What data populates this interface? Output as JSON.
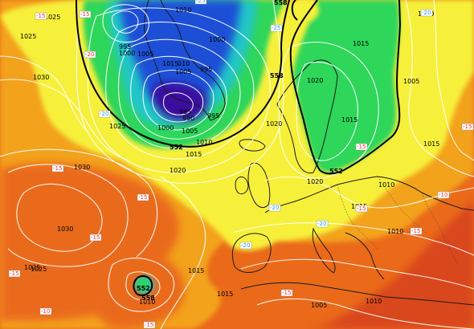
{
  "map": {
    "kind": "500 hPa geopotential and surface pressure analysis",
    "colors": {
      "deep_low": "#3a0f9e",
      "low": "#1f4fd6",
      "cool": "#22c6c8",
      "green": "#2fd65a",
      "yellow": "#f6f03a",
      "warm": "#f3a21a",
      "hot": "#ea6a1a",
      "very_hot": "#d9461a",
      "isobar": "#ffffff",
      "coast": "#1a1a1a",
      "geopotential_line": "#000000"
    }
  },
  "pressure_labels": [
    {
      "name": "p-1010-a",
      "text": "1010"
    },
    {
      "name": "p-995-a",
      "text": "995"
    },
    {
      "name": "p-1000-a",
      "text": "1000"
    },
    {
      "name": "p-1005-a",
      "text": "1005"
    },
    {
      "name": "p-1000-b",
      "text": "1000"
    },
    {
      "name": "p-1015-a",
      "text": "1015"
    },
    {
      "name": "p-010",
      "text": "010"
    },
    {
      "name": "p-1005-b",
      "text": "1005"
    },
    {
      "name": "p-995-b",
      "text": "995"
    },
    {
      "name": "p-985",
      "text": "985"
    },
    {
      "name": "p-990",
      "text": "990"
    },
    {
      "name": "p-995-c",
      "text": "995"
    },
    {
      "name": "p-1000-c",
      "text": "1000"
    },
    {
      "name": "p-1005-c",
      "text": "1005"
    },
    {
      "name": "p-1010-b",
      "text": "1010"
    },
    {
      "name": "p-1015-b",
      "text": "1015"
    },
    {
      "name": "p-1020-a",
      "text": "1020"
    },
    {
      "name": "p-1025-a",
      "text": "1025"
    },
    {
      "name": "p-1030-a",
      "text": "1030"
    },
    {
      "name": "p-1025-b",
      "text": "1025"
    },
    {
      "name": "p-1030-b",
      "text": "1030"
    },
    {
      "name": "p-1030-c",
      "text": "1030"
    },
    {
      "name": "p-1025-c",
      "text": "1025"
    },
    {
      "name": "p-1020-b",
      "text": "1020"
    },
    {
      "name": "p-1020-c",
      "text": "1020"
    },
    {
      "name": "p-1015-c",
      "text": "1015"
    },
    {
      "name": "p-1015-d",
      "text": "1015"
    },
    {
      "name": "p-1005-d",
      "text": "1005"
    },
    {
      "name": "p-1015-e",
      "text": "1015"
    },
    {
      "name": "p-1010-c",
      "text": "1010"
    },
    {
      "name": "p-1020-d",
      "text": "1020"
    },
    {
      "name": "p-1015-f",
      "text": "1015"
    },
    {
      "name": "p-1010-d",
      "text": "1010"
    },
    {
      "name": "p-1015-g",
      "text": "1015"
    },
    {
      "name": "p-1015-h",
      "text": "1015"
    },
    {
      "name": "p-1005-e",
      "text": "1005"
    },
    {
      "name": "p-1010-e",
      "text": "1010"
    },
    {
      "name": "p-1010-f",
      "text": "1010"
    },
    {
      "name": "p-1010-g",
      "text": "1010"
    },
    {
      "name": "p-1025-d",
      "text": "1025"
    },
    {
      "name": "p-1025-e",
      "text": "1025"
    }
  ],
  "geopotential_labels": [
    {
      "name": "g-558-top",
      "text": "558"
    },
    {
      "name": "g-558-mid",
      "text": "558"
    },
    {
      "name": "g-552-a",
      "text": "552"
    },
    {
      "name": "g-552-b",
      "text": "552"
    },
    {
      "name": "g-552-c",
      "text": "552"
    },
    {
      "name": "g-558-low",
      "text": "558"
    }
  ],
  "temperature_labels": [
    {
      "name": "t-15-a",
      "text": "-15",
      "color": "#ff2a2a"
    },
    {
      "name": "t-15-b",
      "text": "-15",
      "color": "#ff2a2a"
    },
    {
      "name": "t-20-a",
      "text": "-20",
      "color": "#ff2a2a"
    },
    {
      "name": "t-25-a",
      "text": "-25",
      "color": "#2aa0ff"
    },
    {
      "name": "t-25-b",
      "text": "-25",
      "color": "#2aa0ff"
    },
    {
      "name": "t-20-b",
      "text": "-20",
      "color": "#2aa0ff"
    },
    {
      "name": "t-15-c",
      "text": "-15",
      "color": "#ff2a2a"
    },
    {
      "name": "t-15-d",
      "text": "-15",
      "color": "#ff2a2a"
    },
    {
      "name": "t-15-e",
      "text": "-15",
      "color": "#ff2a2a"
    },
    {
      "name": "t-15-f",
      "text": "-15",
      "color": "#ff2a2a"
    },
    {
      "name": "t-20-c",
      "text": "-20",
      "color": "#2aa0ff"
    },
    {
      "name": "t-20-d",
      "text": "-20",
      "color": "#2aa0ff"
    },
    {
      "name": "t-20-e",
      "text": "-20",
      "color": "#2aa0ff"
    },
    {
      "name": "t-15-g",
      "text": "-15",
      "color": "#ff2a2a"
    },
    {
      "name": "t-15-h",
      "text": "-15",
      "color": "#ff2a2a"
    },
    {
      "name": "t-15-i",
      "text": "-15",
      "color": "#ff2a2a"
    },
    {
      "name": "t-15-j",
      "text": "-15",
      "color": "#ff2a2a"
    },
    {
      "name": "t-10-a",
      "text": "-10",
      "color": "#ff2a2a"
    },
    {
      "name": "t-15-k",
      "text": "-15",
      "color": "#ff2a2a"
    },
    {
      "name": "t-10-b",
      "text": "-10",
      "color": "#ff2a2a"
    },
    {
      "name": "t-15-l",
      "text": "-15",
      "color": "#ff2a2a"
    },
    {
      "name": "t-20-f",
      "text": "-20",
      "color": "#2aa0ff"
    }
  ]
}
